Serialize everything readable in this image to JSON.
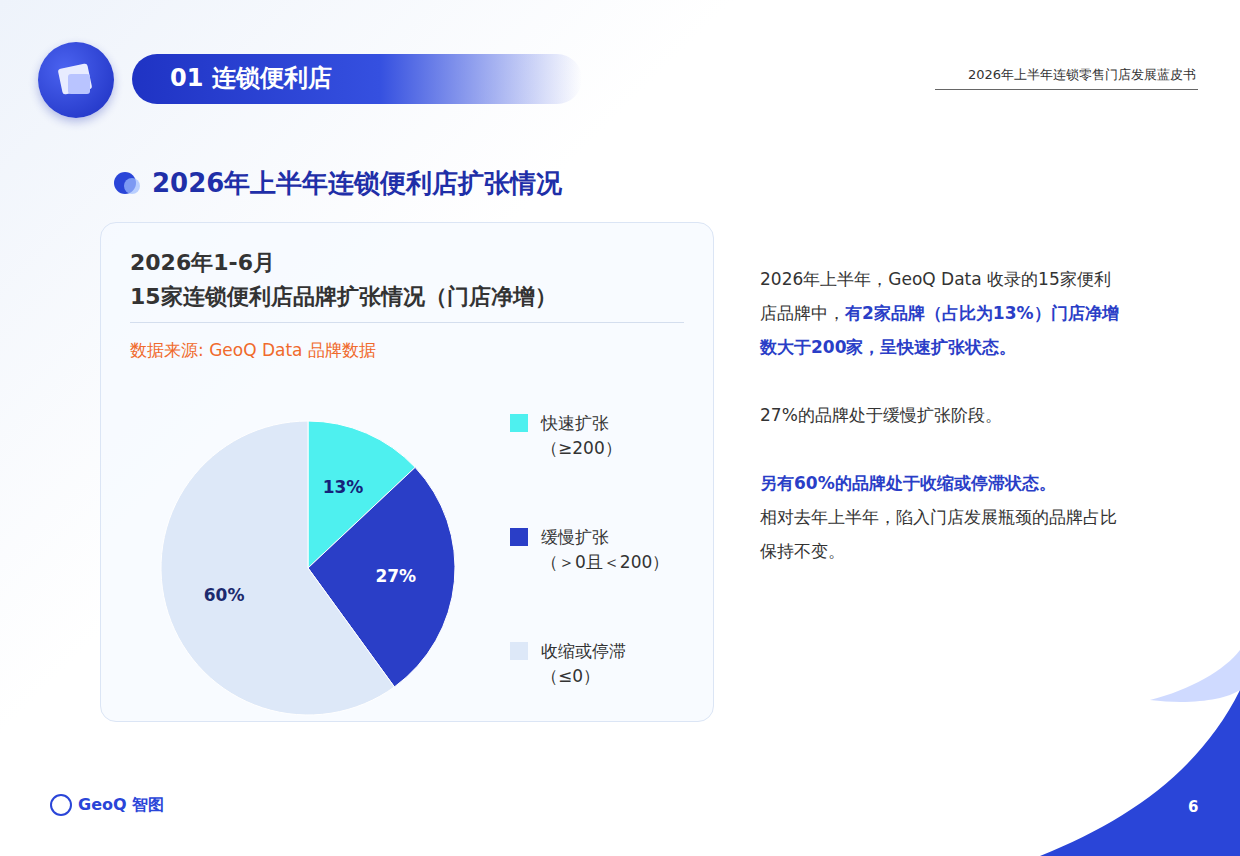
{
  "header": {
    "section": "01 连锁便利店",
    "report_title": "2026年上半年连锁零售门店发展蓝皮书",
    "heading": "2026年上半年连锁便利店扩张情况"
  },
  "chart_data": {
    "type": "pie",
    "title": [
      "2026年1-6月",
      "15家连锁便利店品牌扩张情况（门店净增）"
    ],
    "source": "数据来源: GeoQ Data 品牌数据",
    "categories": [
      "快速扩张",
      "缓慢扩张",
      "收缩或停滞"
    ],
    "legend_ranges": [
      "（≥200）",
      "（＞0且＜200）",
      "（≤0）"
    ],
    "values": [
      13,
      27,
      60
    ],
    "value_labels": [
      "13%",
      "27%",
      "60%"
    ],
    "colors": [
      "#4ef0ef",
      "#2a3ec7",
      "#dde8f8"
    ],
    "data_labels": true,
    "legend": "right"
  },
  "commentary": [
    [
      {
        "text": "2026年上半年，GeoQ Data 收录的15家便利店品牌中，",
        "bold": false
      },
      {
        "text": "有2家品牌（占比为13%）门店净增数大于200家，呈快速扩张状态。",
        "bold": true
      }
    ],
    [
      {
        "text": "27%的品牌处于缓慢扩张阶段。",
        "bold": false
      }
    ],
    [
      {
        "text": "另有60%的品牌处于收缩或停滞状态。",
        "bold": true
      },
      {
        "text": "相对去年上半年，陷入门店发展瓶颈的品牌占比保持不变。",
        "bold": false
      }
    ]
  ],
  "footer": {
    "logo": "GeoQ 智图",
    "page": "6"
  }
}
